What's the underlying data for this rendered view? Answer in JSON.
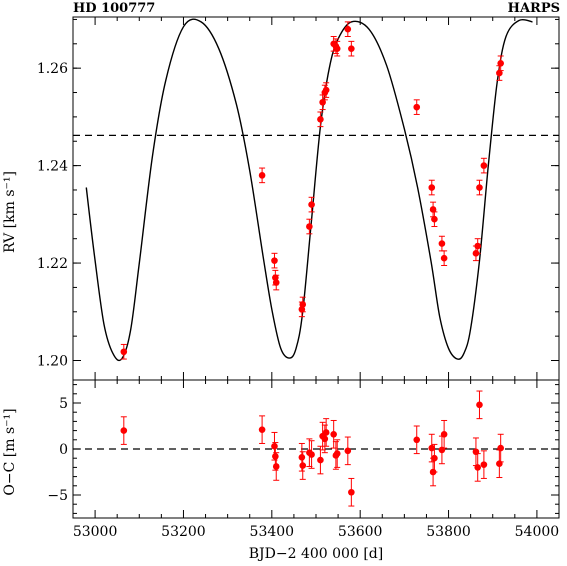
{
  "header": {
    "star": "HD 100777",
    "instrument": "HARPS"
  },
  "colors": {
    "data": "#ff0000",
    "model": "#000000",
    "axis": "#000000"
  },
  "chart_data": [
    {
      "type": "scatter",
      "panel": "rv",
      "xlabel": "",
      "ylabel": "RV [km s⁻¹]",
      "xlim": [
        52950,
        54050
      ],
      "ylim": [
        1.196,
        1.2705
      ],
      "xticks": [
        53000,
        53200,
        53400,
        53600,
        53800,
        54000
      ],
      "yticks": [
        1.2,
        1.22,
        1.24,
        1.26
      ],
      "ytick_labels": [
        "1.20",
        "1.22",
        "1.24",
        "1.26"
      ],
      "systemic_velocity": 1.2462,
      "model_curve": {
        "x": [
          52980,
          53000,
          53020,
          53040,
          53060,
          53080,
          53100,
          53130,
          53160,
          53200,
          53240,
          53280,
          53320,
          53350,
          53380,
          53400,
          53420,
          53440,
          53455,
          53470,
          53490,
          53510,
          53530,
          53550,
          53580,
          53620,
          53660,
          53700,
          53730,
          53760,
          53780,
          53800,
          53820,
          53835,
          53850,
          53870,
          53890,
          53910,
          53930,
          53960,
          53990
        ],
        "y": [
          1.2355,
          1.2205,
          1.2075,
          1.2015,
          1.2003,
          1.206,
          1.22,
          1.242,
          1.2575,
          1.2685,
          1.2695,
          1.264,
          1.2525,
          1.239,
          1.2215,
          1.2105,
          1.2025,
          1.2005,
          1.2025,
          1.21,
          1.229,
          1.248,
          1.26,
          1.266,
          1.2695,
          1.268,
          1.2605,
          1.2475,
          1.2355,
          1.2205,
          1.209,
          1.2025,
          1.2003,
          1.2015,
          1.2065,
          1.2205,
          1.24,
          1.257,
          1.2665,
          1.2698,
          1.2695
        ]
      },
      "series": [
        {
          "x": [
            53065,
            53378,
            53406,
            53408,
            53410,
            53468,
            53470,
            53485,
            53490,
            53510,
            53515,
            53520,
            53523,
            53540,
            53545,
            53548,
            53572,
            53580,
            53728,
            53762,
            53765,
            53768,
            53785,
            53790,
            53862,
            53866,
            53870,
            53880,
            53915,
            53918
          ],
          "y": [
            1.2018,
            1.238,
            1.2205,
            1.217,
            1.216,
            1.2105,
            1.2115,
            1.2275,
            1.232,
            1.2495,
            1.253,
            1.255,
            1.2555,
            1.265,
            1.2645,
            1.264,
            1.268,
            1.264,
            1.252,
            1.2355,
            1.231,
            1.229,
            1.224,
            1.221,
            1.222,
            1.2235,
            1.2355,
            1.24,
            1.259,
            1.261
          ],
          "yerr": 0.0015
        }
      ]
    },
    {
      "type": "scatter",
      "panel": "residuals",
      "xlabel": "BJD−2 400 000  [d]",
      "ylabel": "O−C [m s⁻¹]",
      "xlim": [
        52950,
        54050
      ],
      "ylim": [
        -7.5,
        7.5
      ],
      "xticks": [
        53000,
        53200,
        53400,
        53600,
        53800,
        54000
      ],
      "xtick_labels": [
        "53000",
        "53200",
        "53400",
        "53600",
        "53800",
        "54000"
      ],
      "yticks": [
        -5,
        0,
        5
      ],
      "ytick_labels": [
        "−5",
        "0",
        "5"
      ],
      "zero_line": 0,
      "series": [
        {
          "x": [
            53065,
            53378,
            53406,
            53408,
            53410,
            53468,
            53470,
            53485,
            53490,
            53510,
            53515,
            53520,
            53523,
            53540,
            53545,
            53548,
            53572,
            53580,
            53728,
            53762,
            53765,
            53768,
            53785,
            53790,
            53862,
            53866,
            53870,
            53880,
            53915,
            53918
          ],
          "y": [
            2.0,
            2.1,
            0.3,
            -0.8,
            -1.9,
            -0.9,
            -1.8,
            -0.4,
            -0.6,
            -1.2,
            1.4,
            1.1,
            1.8,
            1.6,
            -0.7,
            -0.5,
            -0.2,
            -4.7,
            1.0,
            0.1,
            -2.5,
            -1.0,
            -0.1,
            1.6,
            -0.3,
            -2.0,
            4.8,
            -1.7,
            -1.6,
            0.1
          ],
          "yerr": 1.5
        }
      ]
    }
  ]
}
